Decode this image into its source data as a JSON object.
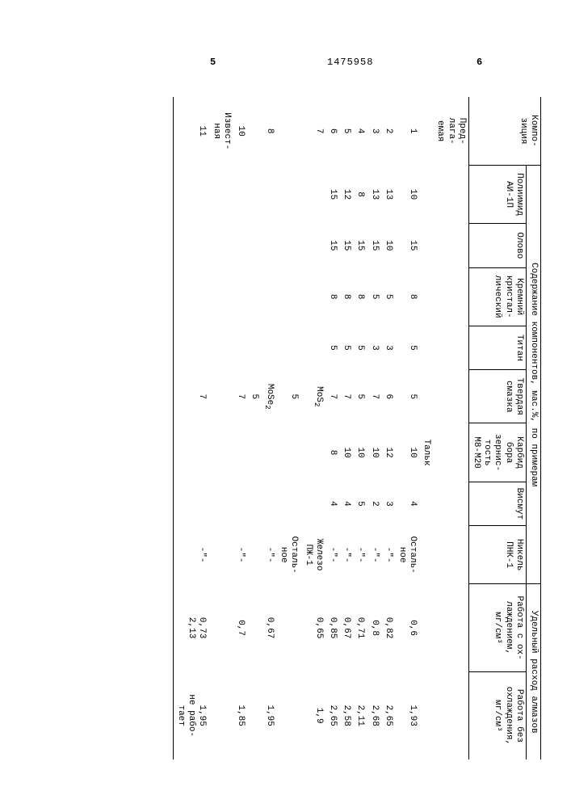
{
  "page": {
    "doc_number": "1475958",
    "page_left": "5",
    "page_right": "6"
  },
  "table": {
    "header": {
      "h_composition": "Компо-\nзиция",
      "h_components": "Содержание компонентов, мас.%, по примерам",
      "h_consumption": "Удельный расход алмазов",
      "c1": "Полиимид\nАИ-1П",
      "c2": "Олово",
      "c3": "Кремний\nкристал-\nлический",
      "c4": "Титан",
      "c5": "Твердая\nсмазка",
      "c6": "Карбид\nбора\nзернис-\nтость\nМ8-М20",
      "c7": "Висмут",
      "c8": "Никель\nПНК-1",
      "c9": "Работа с ох-\nлаждением,\nмг/см³",
      "c10": "Работа без\nохлаждения,\nмг/см³"
    },
    "section_proposed": "Пред-\nлага-\nемая",
    "section_known": "Извест-\nная",
    "talc_label": "Тальк",
    "ostalnoe": "Осталь-\nное",
    "ditto": "-\"-",
    "zhelezo": "Железо\nПЖ-1",
    "rows": [
      {
        "n": "1",
        "c1": "10",
        "c2": "15",
        "c3": "8",
        "c4": "5",
        "c5": "5",
        "c6": "10",
        "c7": "4",
        "c8": "OST",
        "r1": "0,6",
        "r2": "1,93"
      },
      {
        "n": "2",
        "c1": "13",
        "c2": "10",
        "c3": "5",
        "c4": "3",
        "c5": "6",
        "c6": "12",
        "c7": "3",
        "c8": "D",
        "r1": "0,82",
        "r2": "2,65"
      },
      {
        "n": "3",
        "c1": "13",
        "c2": "15",
        "c3": "5",
        "c4": "3",
        "c5": "7",
        "c6": "10",
        "c7": "2",
        "c8": "D",
        "r1": "0,8",
        "r2": "2,68"
      },
      {
        "n": "4",
        "c1": "8",
        "c2": "15",
        "c3": "8",
        "c4": "5",
        "c5": "5",
        "c6": "10",
        "c7": "5",
        "c8": "D",
        "r1": "0,71",
        "r2": "2,11"
      },
      {
        "n": "5",
        "c1": "12",
        "c2": "15",
        "c3": "8",
        "c4": "5",
        "c5": "7",
        "c6": "10",
        "c7": "4",
        "c8": "D",
        "r1": "0,67",
        "r2": "2,58"
      },
      {
        "n": "6",
        "c1": "15",
        "c2": "15",
        "c3": "8",
        "c4": "5",
        "c5": "7",
        "c6": "8",
        "c7": "4",
        "c8": "D",
        "r1": "0,85",
        "r2": "2,65"
      }
    ],
    "row7": {
      "n": "7",
      "c5pre": "MoS",
      "c5sub": "2",
      "c5val": "5",
      "c8": "ZHEL_OST",
      "r1": "0,65",
      "r2": "1,9"
    },
    "row8": {
      "n": "8",
      "c5pre": "MoSe",
      "c5sub": "2",
      "c5val": "5",
      "c8": "D",
      "r1": "0,67",
      "r2": "1,95"
    },
    "row10": {
      "n": "10",
      "c5val": "7",
      "c8": "D",
      "r1": "0,7",
      "r2": "1,85"
    },
    "row11": {
      "n": "11",
      "c5val": "7",
      "c8": "D",
      "r1": "0,73\n2,13",
      "r2": "1,95\nне рабо-\nтает"
    }
  }
}
